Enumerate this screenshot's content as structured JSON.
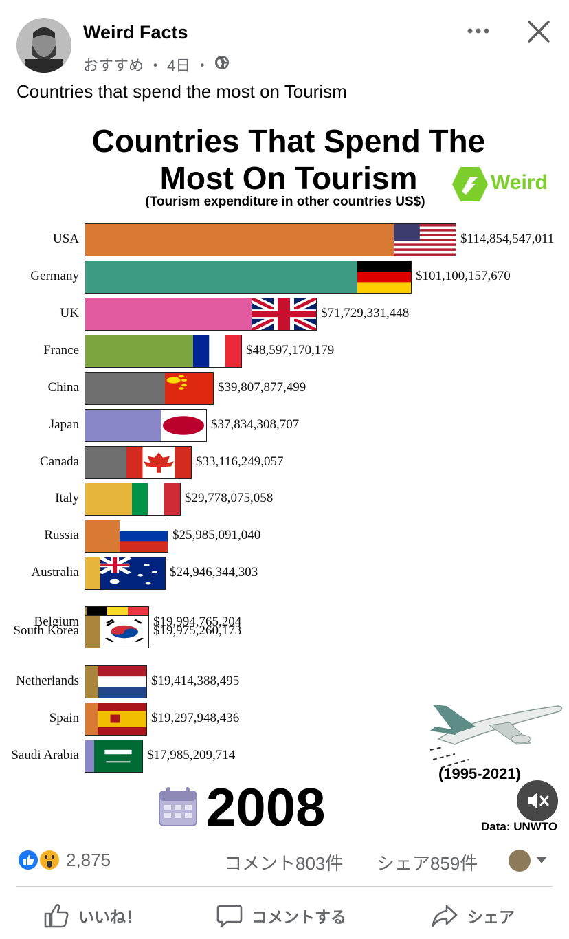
{
  "post": {
    "page_name": "Weird Facts",
    "meta_label": "おすすめ",
    "meta_sep": "・",
    "meta_time": "4日",
    "caption": "Countries that spend the most on Tourism"
  },
  "icons": {
    "more": "more-options-icon",
    "close": "close-icon",
    "audience": "globe-icon",
    "mute": "muted-speaker-icon",
    "like": "like-icon",
    "comment": "comment-icon",
    "share": "share-icon",
    "calendar": "calendar-icon",
    "plane": "airplane-image"
  },
  "video": {
    "logo_text": "Weird",
    "year": "2008",
    "range": "(1995-2021)",
    "source": "Data: UNWTO"
  },
  "chart_data": {
    "type": "bar",
    "orientation": "horizontal",
    "title_line1": "Countries That Spend The",
    "title_line2": "Most On Tourism",
    "subtitle": "(Tourism expenditure in other countries US$)",
    "categories": [
      "USA",
      "Germany",
      "UK",
      "France",
      "China",
      "Japan",
      "Canada",
      "Italy",
      "Russia",
      "Australia",
      "Belgium",
      "South Korea",
      "Netherlands",
      "Spain",
      "Saudi Arabia"
    ],
    "values": [
      114854547011,
      101100157670,
      71729331448,
      48597170179,
      39807877499,
      37834308707,
      33116249057,
      29778075058,
      25985091040,
      24946344303,
      19994765204,
      19975260173,
      19414388495,
      19297948436,
      17985209714
    ],
    "value_labels": [
      "$114,854,547,011",
      "$101,100,157,670",
      "$71,729,331,448",
      "$48,597,170,179",
      "$39,807,877,499",
      "$37,834,308,707",
      "$33,116,249,057",
      "$29,778,075,058",
      "$25,985,091,040",
      "$24,946,344,303",
      "$19,994,765,204",
      "$19,975,260,173",
      "$19,414,388,495",
      "$19,297,948,436",
      "$17,985,209,714"
    ],
    "bar_colors": [
      "#d97a34",
      "#3d9b84",
      "#e25aa0",
      "#7da53f",
      "#6e6e6e",
      "#8a87c8",
      "#6e6e6e",
      "#e7b53c",
      "#d97a34",
      "#e7b53c",
      "#a8853a",
      "#a8853a",
      "#a8853a",
      "#d97a34",
      "#8a87c8"
    ],
    "flags": [
      "usa",
      "germany",
      "uk",
      "france",
      "china",
      "japan",
      "canada",
      "italy",
      "russia",
      "australia",
      "belgium",
      "south-korea",
      "netherlands",
      "spain",
      "saudi-arabia"
    ]
  },
  "engagement": {
    "reactions_count": "2,875",
    "comments": "コメント803件",
    "shares": "シェア859件"
  },
  "actions": {
    "like": "いいね！",
    "comment": "コメントする",
    "share": "シェア"
  }
}
